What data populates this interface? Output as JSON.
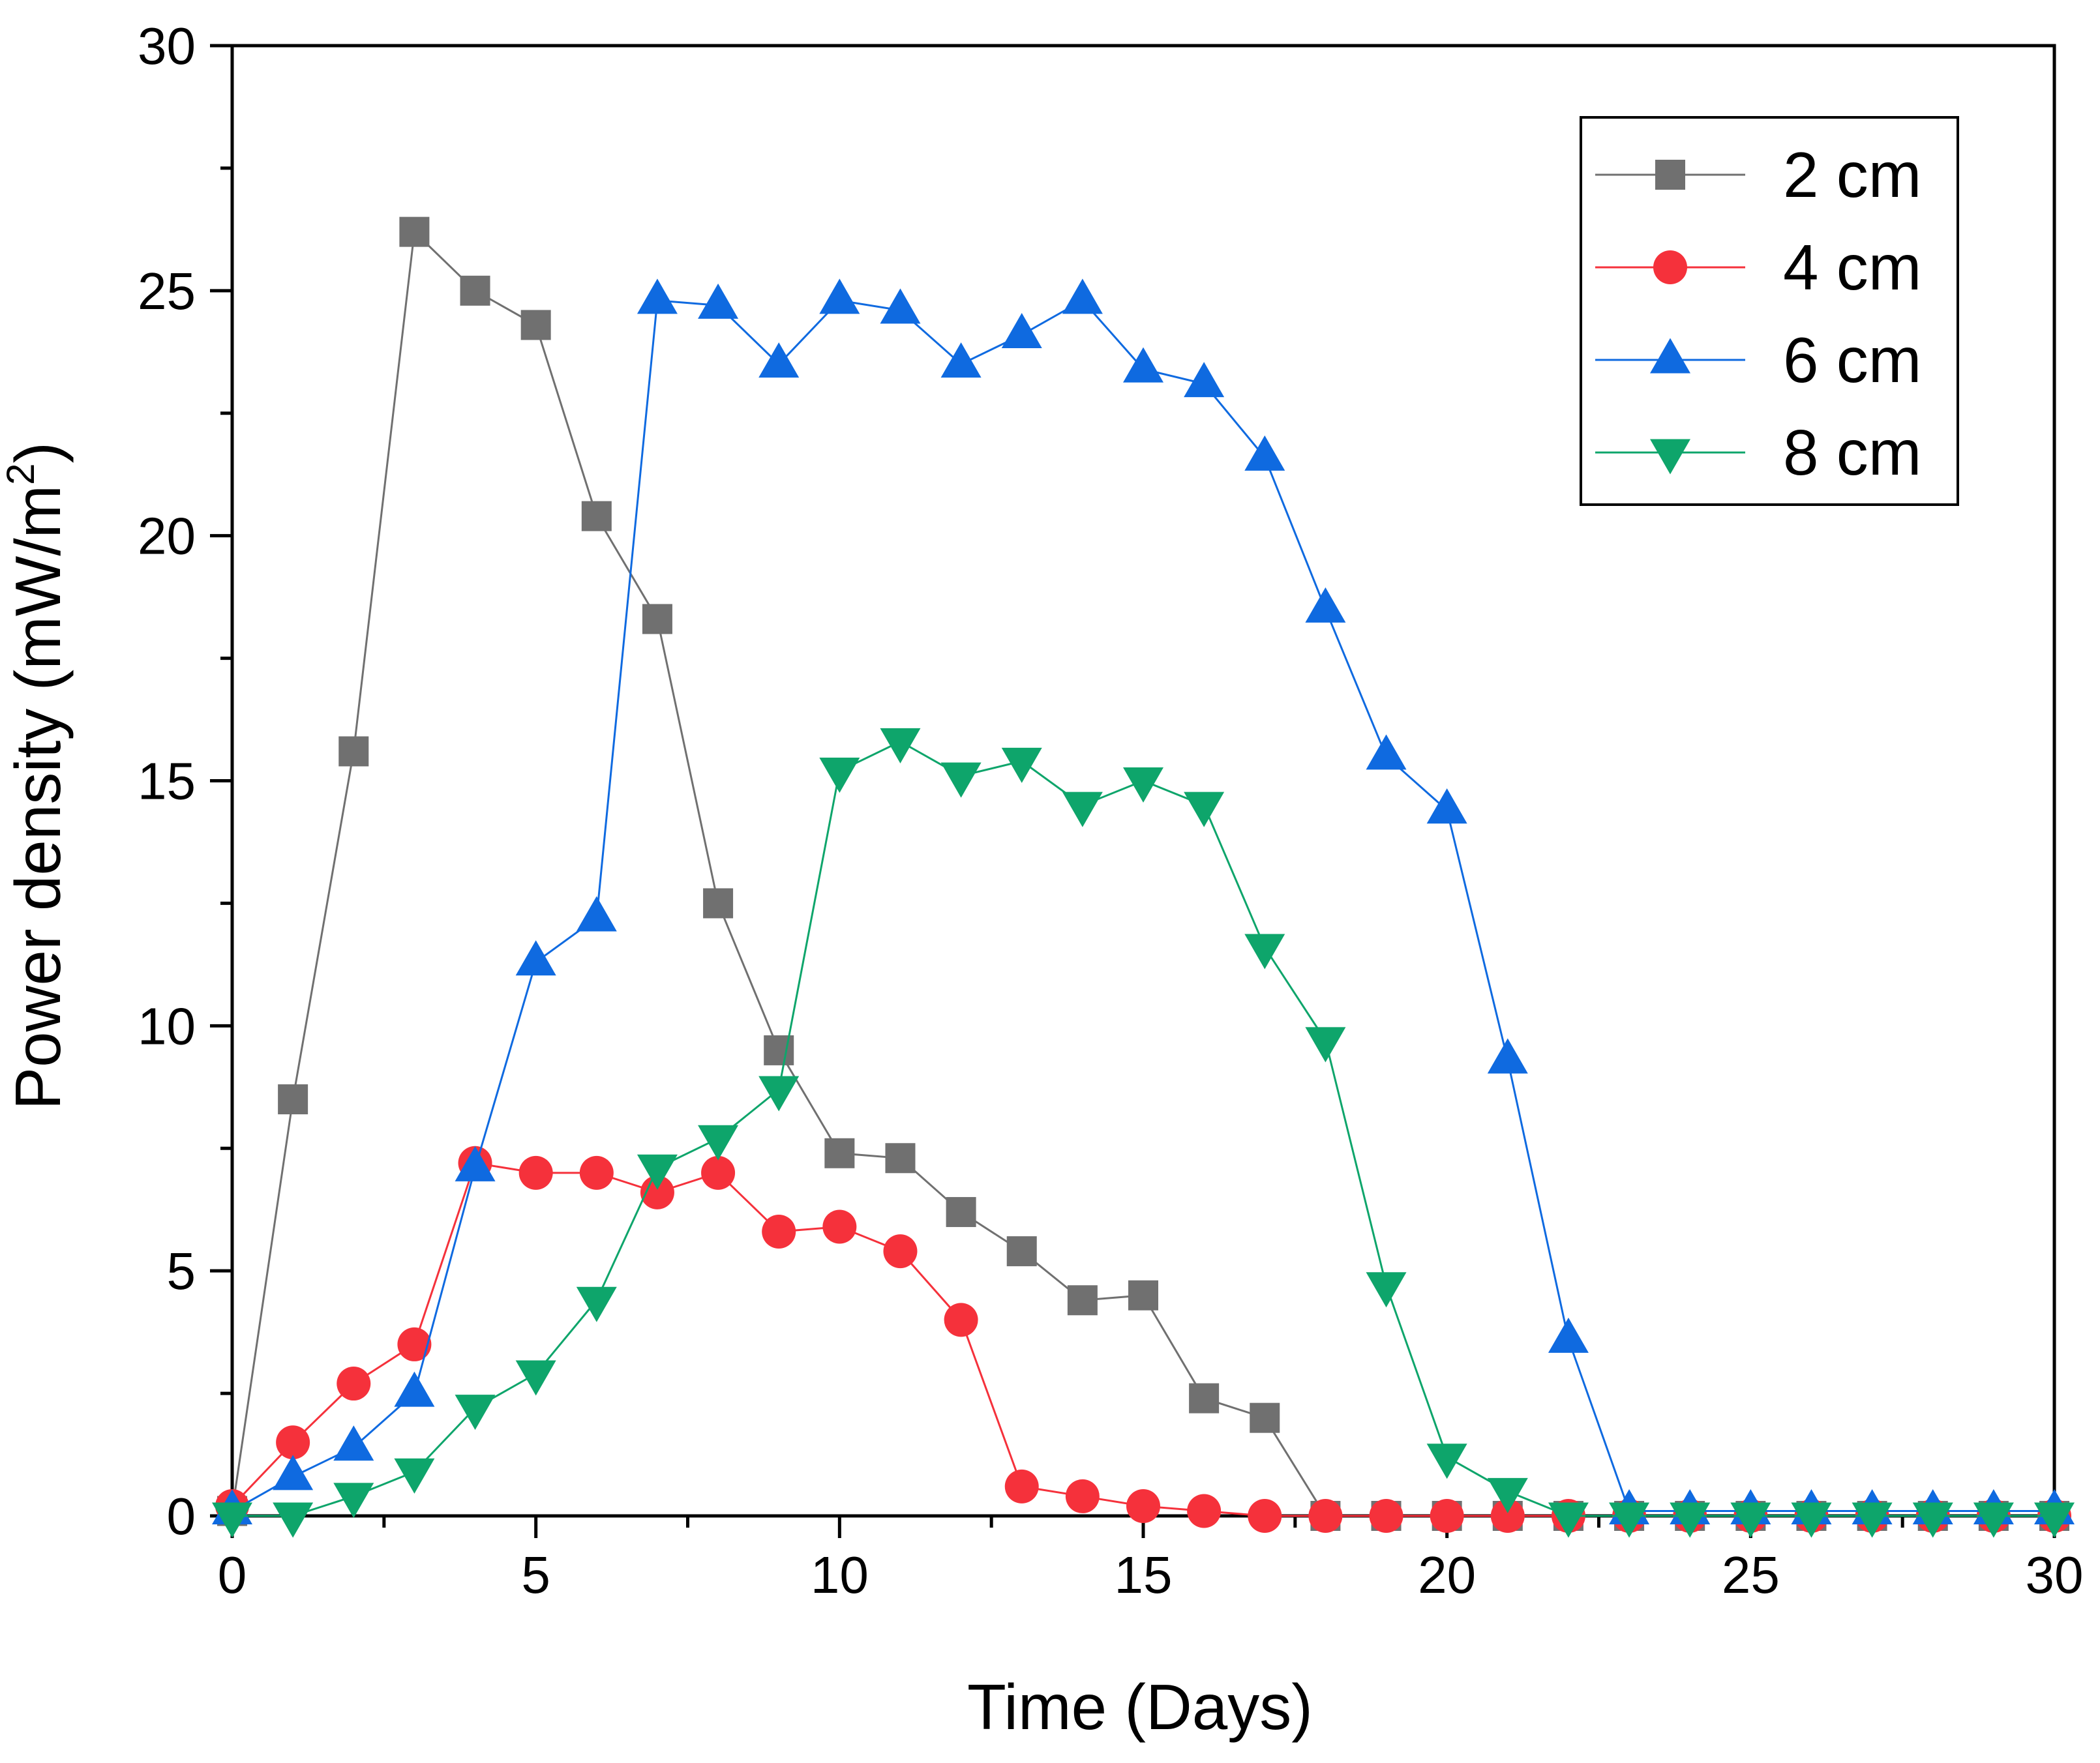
{
  "chart_data": {
    "type": "line",
    "xlabel": "Time (Days)",
    "ylabel_parts": {
      "main": "Power density (mW/m",
      "superscript": "2",
      "close": ")"
    },
    "xlim": [
      0,
      30
    ],
    "ylim": [
      0,
      30
    ],
    "x_ticks": [
      0,
      5,
      10,
      15,
      20,
      25,
      30
    ],
    "y_ticks": [
      0,
      5,
      10,
      15,
      20,
      25,
      30
    ],
    "x_tick_labels": [
      "0",
      "5",
      "10",
      "15",
      "20",
      "25",
      "30"
    ],
    "y_tick_labels": [
      "0",
      "5",
      "10",
      "15",
      "20",
      "25",
      "30"
    ],
    "legend_position": "top-right",
    "grid": false,
    "series": [
      {
        "name": "2 cm",
        "marker": "square",
        "color": "#707070",
        "x": [
          0,
          1,
          2,
          3,
          4,
          5,
          6,
          7,
          8,
          9,
          10,
          11,
          12,
          13,
          14,
          15,
          16,
          17,
          18,
          19,
          20,
          21,
          22,
          23,
          24,
          25,
          26,
          27,
          28,
          29,
          30
        ],
        "values": [
          0.1,
          8.5,
          15.6,
          26.2,
          25.0,
          24.3,
          20.4,
          18.3,
          12.5,
          9.5,
          7.4,
          7.3,
          6.2,
          5.4,
          4.4,
          4.5,
          2.4,
          2.0,
          0,
          0,
          0,
          0,
          0,
          0,
          0,
          0,
          0,
          0,
          0,
          0,
          0
        ]
      },
      {
        "name": "4 cm",
        "marker": "circle",
        "color": "#f5313b",
        "x": [
          0,
          1,
          2,
          3,
          4,
          5,
          6,
          7,
          8,
          9,
          10,
          11,
          12,
          13,
          14,
          15,
          16,
          17,
          18,
          19,
          20,
          21,
          22,
          23,
          24,
          25,
          26,
          27,
          28,
          29,
          30
        ],
        "values": [
          0.2,
          1.5,
          2.7,
          3.5,
          7.2,
          7.0,
          7.0,
          6.6,
          7.0,
          5.8,
          5.9,
          5.4,
          4.0,
          0.6,
          0.4,
          0.2,
          0.1,
          0,
          0,
          0,
          0,
          0,
          0,
          0,
          0,
          0,
          0,
          0,
          0,
          0,
          0
        ]
      },
      {
        "name": "6 cm",
        "marker": "triangle-up",
        "color": "#0f6ae0",
        "x": [
          0,
          1,
          2,
          3,
          4,
          5,
          6,
          7,
          8,
          9,
          10,
          11,
          12,
          13,
          14,
          15,
          16,
          17,
          18,
          19,
          20,
          21,
          22,
          23,
          24,
          25,
          26,
          27,
          28,
          29,
          30
        ],
        "values": [
          0.1,
          0.8,
          1.4,
          2.5,
          7.1,
          11.3,
          12.2,
          24.8,
          24.7,
          23.5,
          24.8,
          24.6,
          23.5,
          24.1,
          24.8,
          23.4,
          23.1,
          21.6,
          18.5,
          15.5,
          14.4,
          9.3,
          3.6,
          0.1,
          0.1,
          0.1,
          0.1,
          0.1,
          0.1,
          0.1,
          0.1
        ]
      },
      {
        "name": "8 cm",
        "marker": "triangle-down",
        "color": "#0ea56b",
        "x": [
          0,
          1,
          2,
          3,
          4,
          5,
          6,
          7,
          8,
          9,
          10,
          11,
          12,
          13,
          14,
          15,
          16,
          17,
          18,
          19,
          20,
          21,
          22,
          23,
          24,
          25,
          26,
          27,
          28,
          29,
          30
        ],
        "values": [
          0,
          0,
          0.4,
          0.9,
          2.2,
          2.9,
          4.4,
          7.1,
          7.7,
          8.7,
          15.2,
          15.8,
          15.1,
          15.4,
          14.5,
          15.0,
          14.5,
          11.6,
          9.7,
          4.7,
          1.2,
          0.5,
          0,
          0,
          0,
          0,
          0,
          0,
          0,
          0,
          0
        ]
      }
    ]
  }
}
